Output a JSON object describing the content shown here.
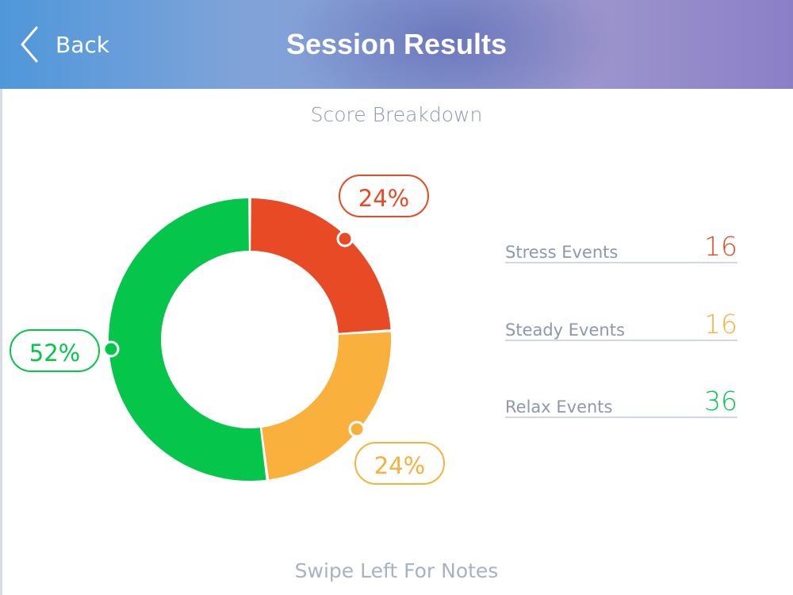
{
  "header": {
    "back_label": "Back",
    "back_icon": "chevron-left-icon",
    "title": "Session Results"
  },
  "section_title": "Score Breakdown",
  "stats": [
    {
      "label": "Stress Events",
      "value": "16",
      "color": "#e74a24"
    },
    {
      "label": "Steady Events",
      "value": "16",
      "color": "#f9b03c"
    },
    {
      "label": "Relax Events",
      "value": "36",
      "color": "#05c64a"
    }
  ],
  "chart_data": {
    "type": "pie",
    "title": "Score Breakdown",
    "slices": [
      {
        "label": "Stress Events",
        "value": 24,
        "display": "24%",
        "color": "#e74a24"
      },
      {
        "label": "Steady Events",
        "value": 24,
        "display": "24%",
        "color": "#f9b03c"
      },
      {
        "label": "Relax Events",
        "value": 52,
        "display": "52%",
        "color": "#05c64a"
      }
    ],
    "donut": true
  },
  "footer": "Swipe Left For Notes"
}
